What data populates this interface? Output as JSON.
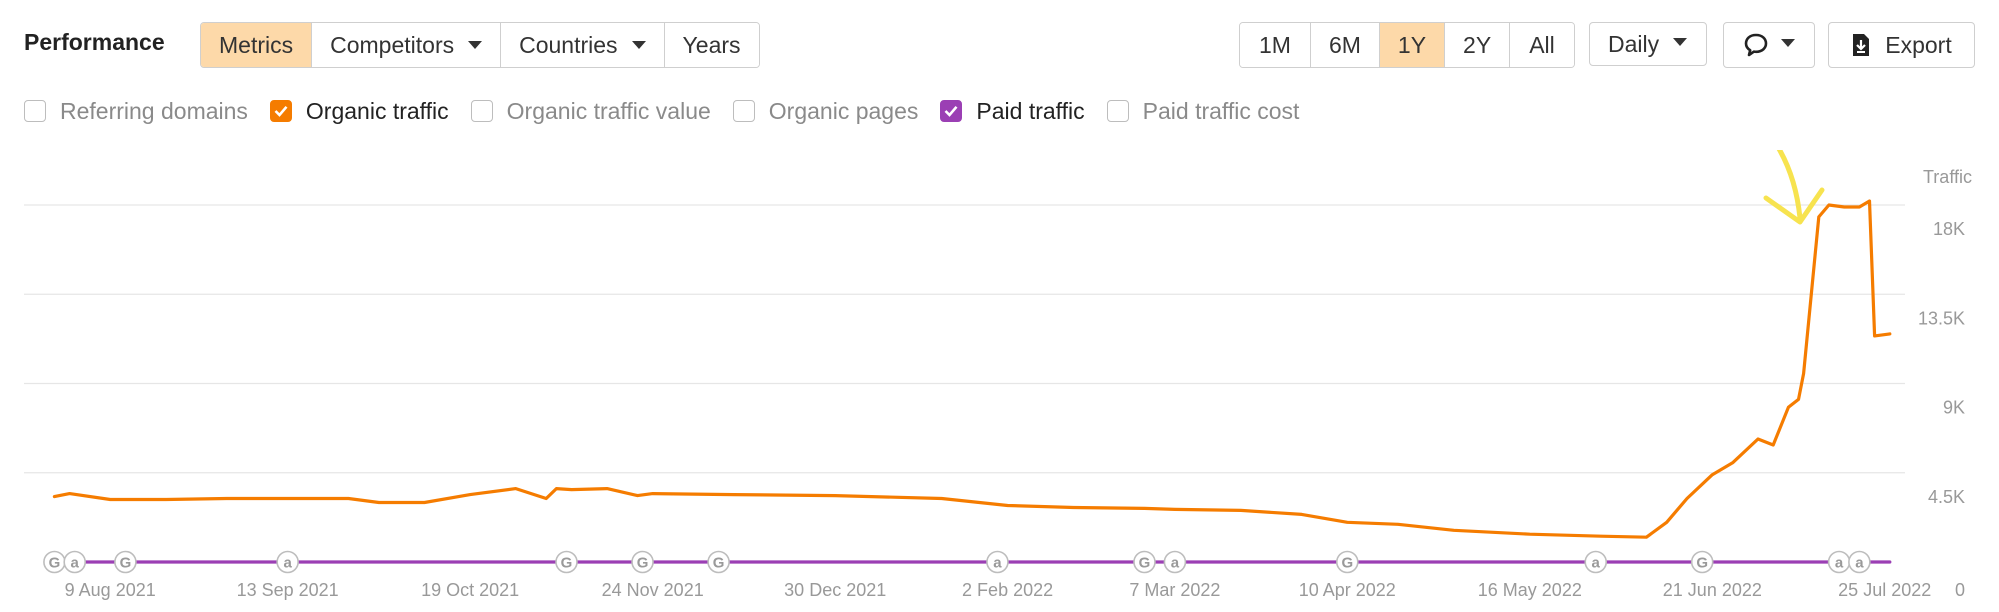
{
  "header": {
    "title": "Performance",
    "tabs": [
      {
        "label": "Metrics",
        "active": true
      },
      {
        "label": "Competitors",
        "dropdown": true
      },
      {
        "label": "Countries",
        "dropdown": true
      },
      {
        "label": "Years"
      }
    ],
    "ranges": [
      {
        "label": "1M"
      },
      {
        "label": "6M"
      },
      {
        "label": "1Y",
        "active": true
      },
      {
        "label": "2Y"
      },
      {
        "label": "All"
      }
    ],
    "interval": "Daily",
    "export_label": "Export",
    "icons": {
      "annotation": "speech-bubble-icon",
      "export": "download-icon"
    }
  },
  "checkboxes": [
    {
      "label": "Referring domains",
      "checked": false
    },
    {
      "label": "Organic traffic",
      "checked": true,
      "color": "#f57c00"
    },
    {
      "label": "Organic traffic value",
      "checked": false
    },
    {
      "label": "Organic pages",
      "checked": false
    },
    {
      "label": "Paid traffic",
      "checked": true,
      "color": "#9b3fb4"
    },
    {
      "label": "Paid traffic cost",
      "checked": false
    }
  ],
  "chart_data": {
    "type": "line",
    "title": "",
    "xlabel": "",
    "ylabel": "Traffic",
    "x_ticks": [
      "9 Aug 2021",
      "13 Sep 2021",
      "19 Oct 2021",
      "24 Nov 2021",
      "30 Dec 2021",
      "2 Feb 2022",
      "7 Mar 2022",
      "10 Apr 2022",
      "16 May 2022",
      "21 Jun 2022",
      "25 Jul 2022"
    ],
    "y_ticks": [
      "0",
      "4.5K",
      "9K",
      "13.5K",
      "18K"
    ],
    "ylim": [
      0,
      18000
    ],
    "grid": true,
    "y_axis_side": "right",
    "series": [
      {
        "name": "Organic traffic",
        "color": "#f57c00",
        "x": [
          "2021-07-29",
          "2021-08-01",
          "2021-08-09",
          "2021-08-20",
          "2021-09-01",
          "2021-09-13",
          "2021-09-25",
          "2021-10-01",
          "2021-10-10",
          "2021-10-19",
          "2021-10-28",
          "2021-11-03",
          "2021-11-05",
          "2021-11-08",
          "2021-11-15",
          "2021-11-21",
          "2021-11-24",
          "2021-12-10",
          "2021-12-30",
          "2022-01-20",
          "2022-02-02",
          "2022-02-15",
          "2022-03-01",
          "2022-03-07",
          "2022-03-20",
          "2022-04-01",
          "2022-04-10",
          "2022-04-20",
          "2022-05-01",
          "2022-05-16",
          "2022-05-30",
          "2022-06-08",
          "2022-06-12",
          "2022-06-16",
          "2022-06-21",
          "2022-06-25",
          "2022-06-30",
          "2022-07-03",
          "2022-07-06",
          "2022-07-08",
          "2022-07-09",
          "2022-07-12",
          "2022-07-14",
          "2022-07-17",
          "2022-07-20",
          "2022-07-22",
          "2022-07-23",
          "2022-07-26"
        ],
        "values": [
          3300,
          3450,
          3150,
          3150,
          3200,
          3200,
          3200,
          3000,
          3000,
          3400,
          3700,
          3200,
          3700,
          3650,
          3700,
          3350,
          3450,
          3400,
          3350,
          3200,
          2850,
          2750,
          2700,
          2650,
          2600,
          2400,
          2000,
          1900,
          1600,
          1400,
          1300,
          1250,
          2000,
          3200,
          4400,
          5000,
          6200,
          5900,
          7800,
          8200,
          9500,
          17400,
          18000,
          17900,
          17900,
          18200,
          11400,
          11500
        ]
      },
      {
        "name": "Paid traffic",
        "color": "#9b3fb4",
        "x": [
          "2021-07-29",
          "2022-07-26"
        ],
        "values": [
          0,
          0
        ]
      }
    ],
    "event_markers": [
      {
        "date": "2021-07-29",
        "icon": "G"
      },
      {
        "date": "2021-08-02",
        "icon": "a"
      },
      {
        "date": "2021-08-12",
        "icon": "G"
      },
      {
        "date": "2021-09-13",
        "icon": "a"
      },
      {
        "date": "2021-11-07",
        "icon": "G"
      },
      {
        "date": "2021-11-22",
        "icon": "G"
      },
      {
        "date": "2021-12-07",
        "icon": "G"
      },
      {
        "date": "2022-01-31",
        "icon": "a"
      },
      {
        "date": "2022-03-01",
        "icon": "G"
      },
      {
        "date": "2022-03-07",
        "icon": "a"
      },
      {
        "date": "2022-04-10",
        "icon": "G"
      },
      {
        "date": "2022-05-29",
        "icon": "a"
      },
      {
        "date": "2022-06-19",
        "icon": "G"
      },
      {
        "date": "2022-07-16",
        "icon": "a"
      },
      {
        "date": "2022-07-20",
        "icon": "a"
      }
    ],
    "annotation": {
      "type": "arrow",
      "color": "#f7e34f"
    }
  }
}
